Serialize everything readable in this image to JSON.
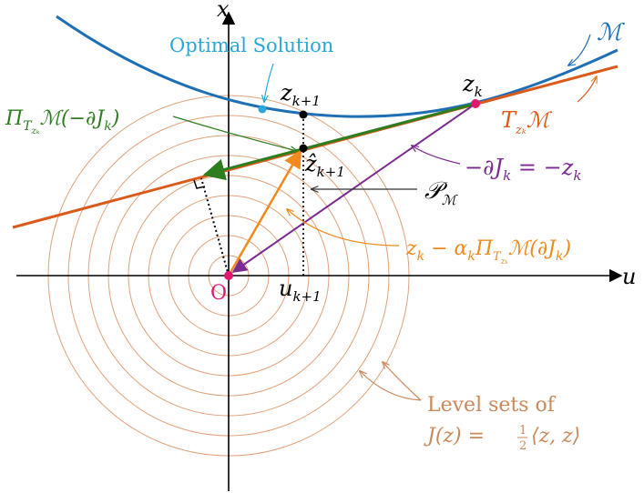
{
  "diagram": {
    "axis_labels": {
      "x": "x",
      "u": "u"
    },
    "origin_label": "O",
    "manifold_label": "ℳ",
    "tangent_label": {
      "main": "T",
      "sub": "zₖ",
      "tail": "ℳ"
    },
    "optimal_solution": "Optimal Solution",
    "zk": {
      "main": "z",
      "sub": "k"
    },
    "zk1": {
      "main": "z",
      "sub": "k+1"
    },
    "zhat": {
      "main": "ẑ",
      "sub": "k+1"
    },
    "uk1": {
      "main": "u",
      "sub": "k+1"
    },
    "projection_label": {
      "main": "Π",
      "sub": "T",
      "subsub": "zₖ",
      "tail": "ℳ(−∂J",
      "tail_sub": "k",
      "close": ")"
    },
    "neg_grad_label": {
      "pre": "−∂J",
      "pre_sub": "k",
      "mid": " = −z",
      "mid_sub": "k"
    },
    "retraction_label": {
      "main": "𝒫",
      "sub": "ℳ"
    },
    "update_label": {
      "a": "z",
      "a_sub": "k",
      "b": " − α",
      "b_sub": "k",
      "c": "Π",
      "c_sub": "T",
      "c_subsub": "zₖ",
      "d": "ℳ(∂J",
      "d_sub": "k",
      "e": ")"
    },
    "level_sets_line1": "Level sets of",
    "level_sets_line2": {
      "a": "J(z) = ",
      "num": "1",
      "den": "2",
      "b": "⟨z, z⟩"
    },
    "colors": {
      "manifold": "#1f6fb5",
      "tangent": "#d95a1a",
      "green": "#2e7d1f",
      "purple": "#7b2a8f",
      "orange": "#f08a1c",
      "circles": "#e0a27a",
      "cyan": "#2aa7d8",
      "origin": "#e0196e",
      "level_text": "#c9895a",
      "axes": "#000000"
    }
  }
}
